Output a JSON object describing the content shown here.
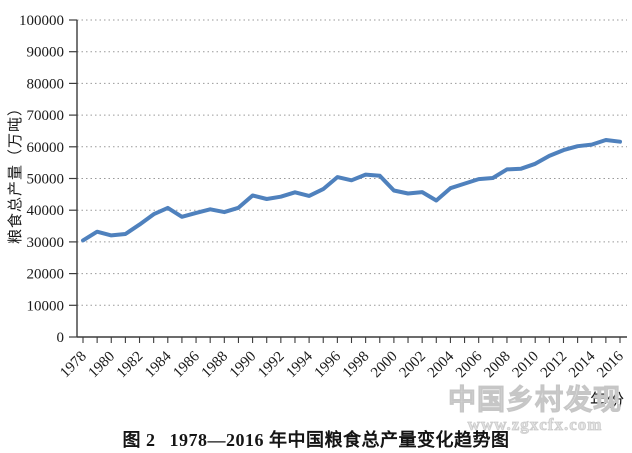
{
  "page": {
    "background": "#ffffff"
  },
  "chart_data": {
    "type": "line",
    "title": "1978—2016 年中国粮食总产量变化趋势图",
    "xlabel": "年份",
    "ylabel": "粮食总产量（万吨）",
    "series_name": "粮食总产量",
    "x": [
      1978,
      1979,
      1980,
      1981,
      1982,
      1983,
      1984,
      1985,
      1986,
      1987,
      1988,
      1989,
      1990,
      1991,
      1992,
      1993,
      1994,
      1995,
      1996,
      1997,
      1998,
      1999,
      2000,
      2001,
      2002,
      2003,
      2004,
      2005,
      2006,
      2007,
      2008,
      2009,
      2010,
      2011,
      2012,
      2013,
      2014,
      2015,
      2016
    ],
    "values": [
      30477,
      33212,
      32056,
      32502,
      35450,
      38728,
      40731,
      37911,
      39151,
      40298,
      39408,
      40755,
      44624,
      43529,
      44266,
      45649,
      44510,
      46662,
      50454,
      49417,
      51230,
      50839,
      46218,
      45264,
      45706,
      43070,
      46947,
      48402,
      49804,
      50160,
      52871,
      53082,
      54648,
      57121,
      58958,
      60194,
      60703,
      62144,
      61624
    ],
    "ylim": [
      0,
      100000
    ],
    "ytick_step": 10000,
    "xtick_label_every": 2,
    "grid": "horizontal-dotted",
    "legend": "none",
    "line_color": "#4f81bd",
    "grid_color": "#9a9a9a",
    "axis_color": "#3c3c3c",
    "tick_label_color": "#1a1a1a"
  },
  "caption": {
    "prefix": "图 2",
    "text": "1978—2016 年中国粮食总产量变化趋势图"
  },
  "watermark": {
    "line1": "中国乡村发现",
    "line2": "www.zgxcfx.com"
  }
}
